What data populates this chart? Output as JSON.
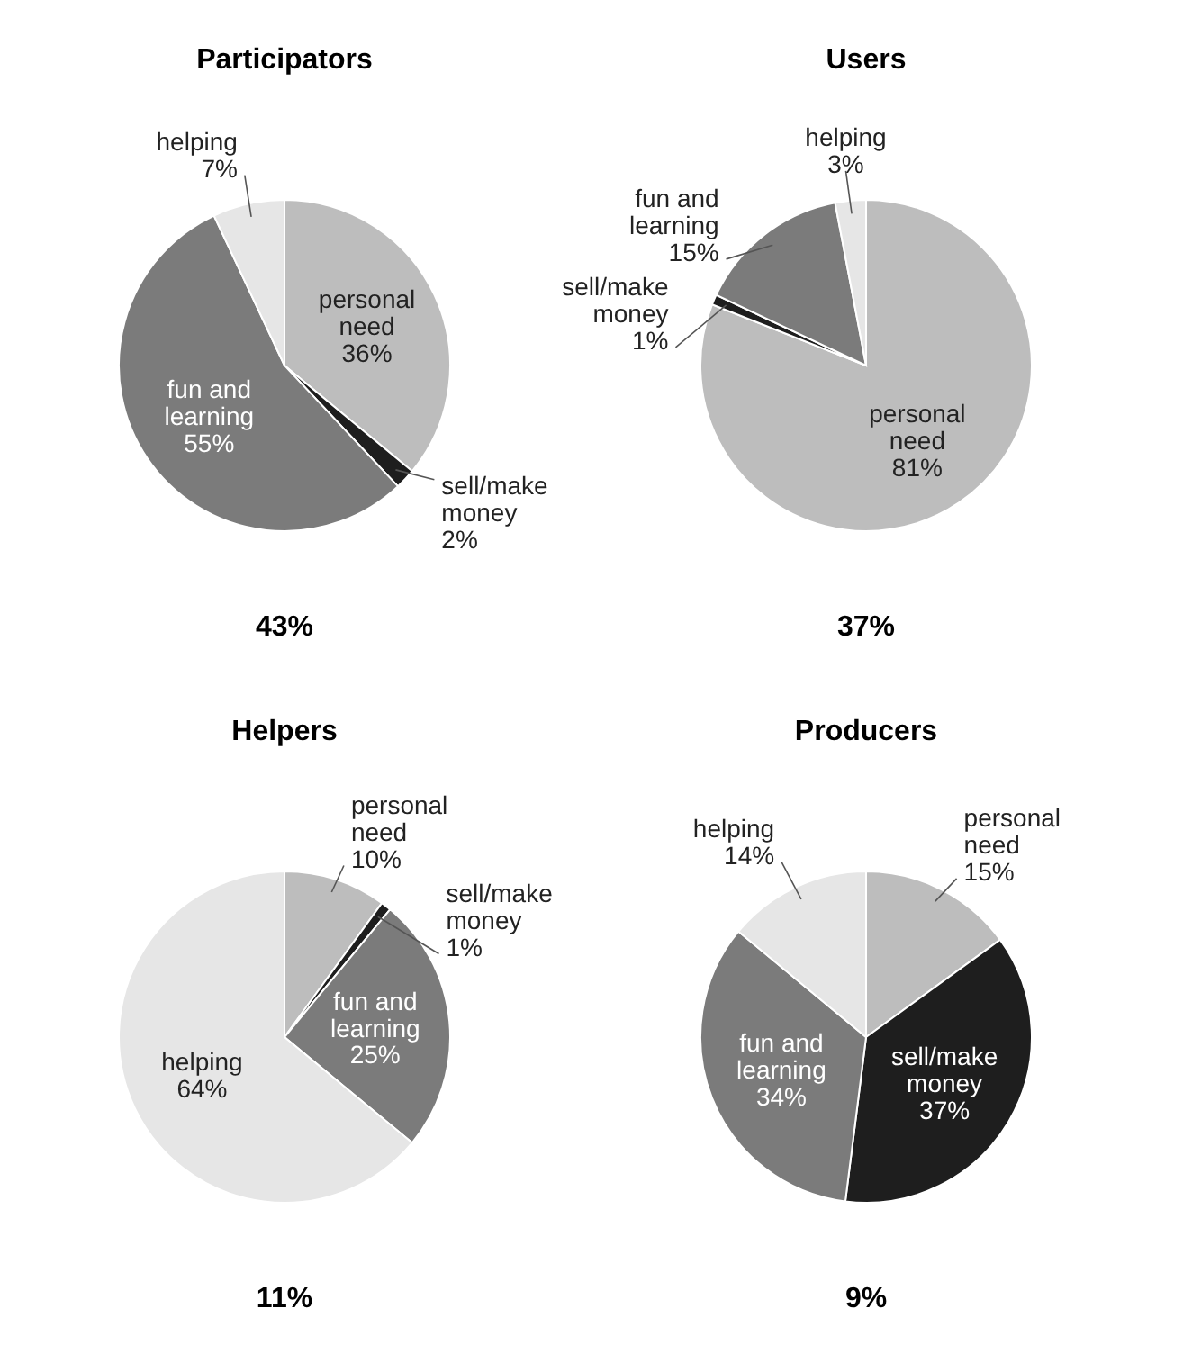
{
  "chart_data": [
    {
      "type": "pie",
      "title": "Participators",
      "categories": [
        "personal need",
        "sell/make money",
        "fun and learning",
        "helping"
      ],
      "values": [
        36,
        2,
        55,
        7
      ],
      "value_labels": [
        "36%",
        "2%",
        "55%",
        "7%"
      ],
      "colors": [
        "#bdbdbd",
        "#1e1e1e",
        "#7b7b7b",
        "#e6e6e6"
      ],
      "annotations": [
        "43%"
      ]
    },
    {
      "type": "pie",
      "title": "Users",
      "categories": [
        "personal need",
        "sell/make money",
        "fun and learning",
        "helping"
      ],
      "values": [
        81,
        1,
        15,
        3
      ],
      "value_labels": [
        "81%",
        "1%",
        "15%",
        "3%"
      ],
      "colors": [
        "#bdbdbd",
        "#1e1e1e",
        "#7b7b7b",
        "#e6e6e6"
      ],
      "annotations": [
        "37%"
      ]
    },
    {
      "type": "pie",
      "title": "Helpers",
      "categories": [
        "personal need",
        "sell/make money",
        "fun and learning",
        "helping"
      ],
      "values": [
        10,
        1,
        25,
        64
      ],
      "value_labels": [
        "10%",
        "1%",
        "25%",
        "64%"
      ],
      "colors": [
        "#bdbdbd",
        "#1e1e1e",
        "#7b7b7b",
        "#e6e6e6"
      ],
      "annotations": [
        "11%"
      ]
    },
    {
      "type": "pie",
      "title": "Producers",
      "categories": [
        "personal need",
        "sell/make money",
        "fun and learning",
        "helping"
      ],
      "values": [
        15,
        37,
        34,
        14
      ],
      "value_labels": [
        "15%",
        "37%",
        "34%",
        "14%"
      ],
      "colors": [
        "#bdbdbd",
        "#1e1e1e",
        "#7b7b7b",
        "#e6e6e6"
      ],
      "annotations": [
        "9%"
      ]
    }
  ]
}
